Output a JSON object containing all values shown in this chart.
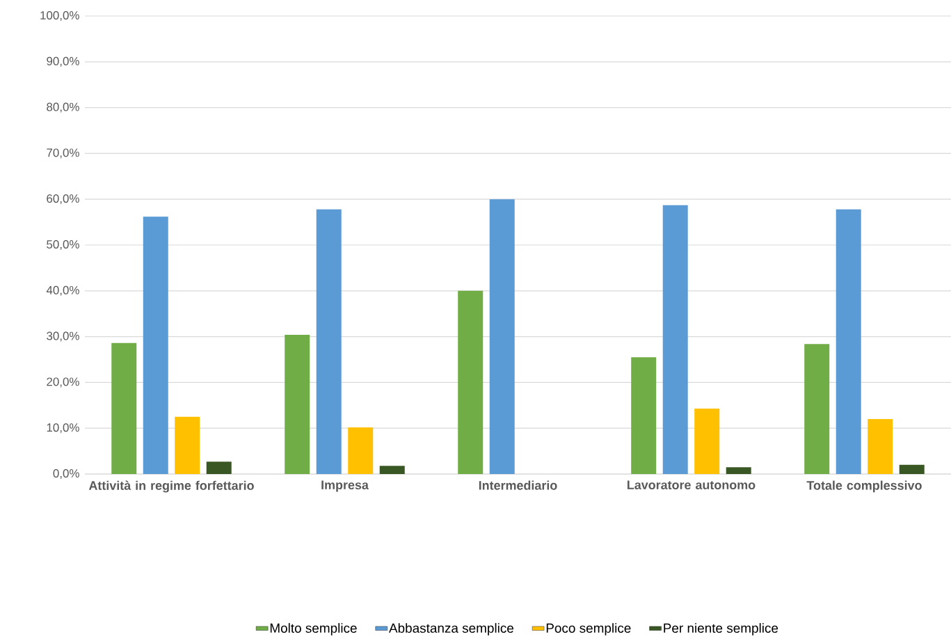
{
  "chart_data": {
    "type": "bar",
    "categories": [
      "Attività in regime forfettario",
      "Impresa",
      "Intermediario",
      "Lavoratore autonomo",
      "Totale complessivo"
    ],
    "series": [
      {
        "name": "Molto semplice",
        "color": "#70ad47",
        "values": [
          28.6,
          30.4,
          40.0,
          25.5,
          28.4
        ]
      },
      {
        "name": "Abbastanza semplice",
        "color": "#5b9bd5",
        "values": [
          56.2,
          57.8,
          60.0,
          58.7,
          57.8
        ]
      },
      {
        "name": "Poco semplice",
        "color": "#ffc000",
        "values": [
          12.5,
          10.2,
          null,
          14.3,
          12.0
        ]
      },
      {
        "name": "Per niente semplice",
        "color": "#385723",
        "values": [
          2.7,
          1.8,
          null,
          1.5,
          2.0
        ]
      }
    ],
    "ylim": [
      0,
      100
    ],
    "yticks": [
      {
        "value": 0,
        "label": "0,0%"
      },
      {
        "value": 10,
        "label": "10,0%"
      },
      {
        "value": 20,
        "label": "20,0%"
      },
      {
        "value": 30,
        "label": "30,0%"
      },
      {
        "value": 40,
        "label": "40,0%"
      },
      {
        "value": 50,
        "label": "50,0%"
      },
      {
        "value": 60,
        "label": "60,0%"
      },
      {
        "value": 70,
        "label": "70,0%"
      },
      {
        "value": 80,
        "label": "80,0%"
      },
      {
        "value": 90,
        "label": "90,0%"
      },
      {
        "value": 100,
        "label": "100,0%"
      }
    ],
    "grid": "y",
    "legend": "bottom"
  }
}
